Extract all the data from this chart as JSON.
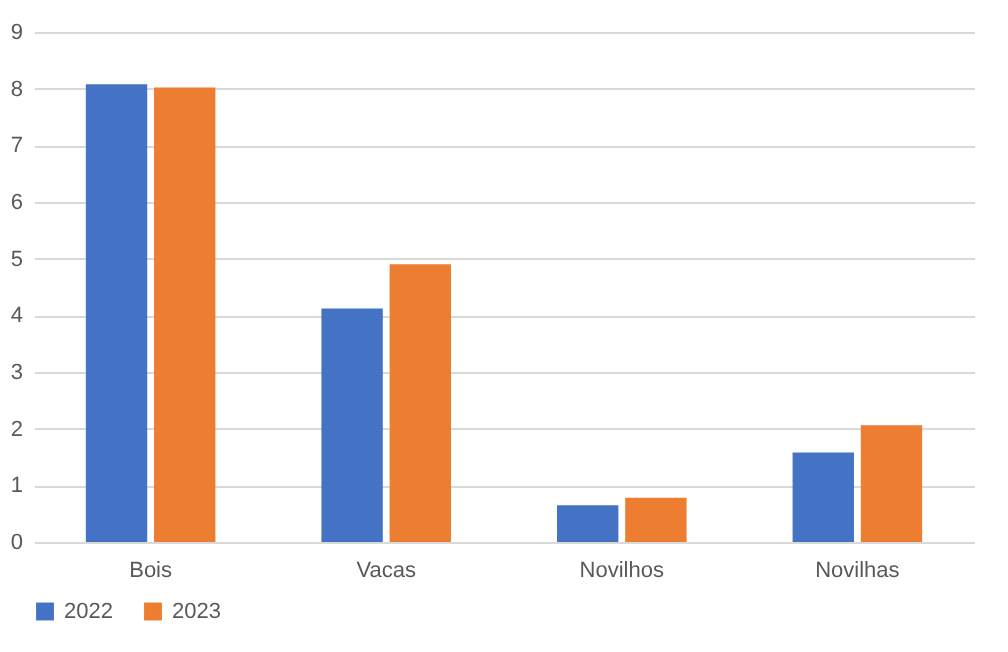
{
  "chart_data": {
    "type": "bar",
    "categories": [
      "Bois",
      "Vacas",
      "Novilhos",
      "Novilhas"
    ],
    "series": [
      {
        "name": "2022",
        "color": "#4472c4",
        "values": [
          8.08,
          4.12,
          0.65,
          1.58
        ]
      },
      {
        "name": "2023",
        "color": "#ed7d31",
        "values": [
          8.02,
          4.9,
          0.78,
          2.06
        ]
      }
    ],
    "ylim": [
      0,
      9
    ],
    "yticks": [
      0,
      1,
      2,
      3,
      4,
      5,
      6,
      7,
      8,
      9
    ],
    "grid": "y",
    "legend": "bottom"
  }
}
